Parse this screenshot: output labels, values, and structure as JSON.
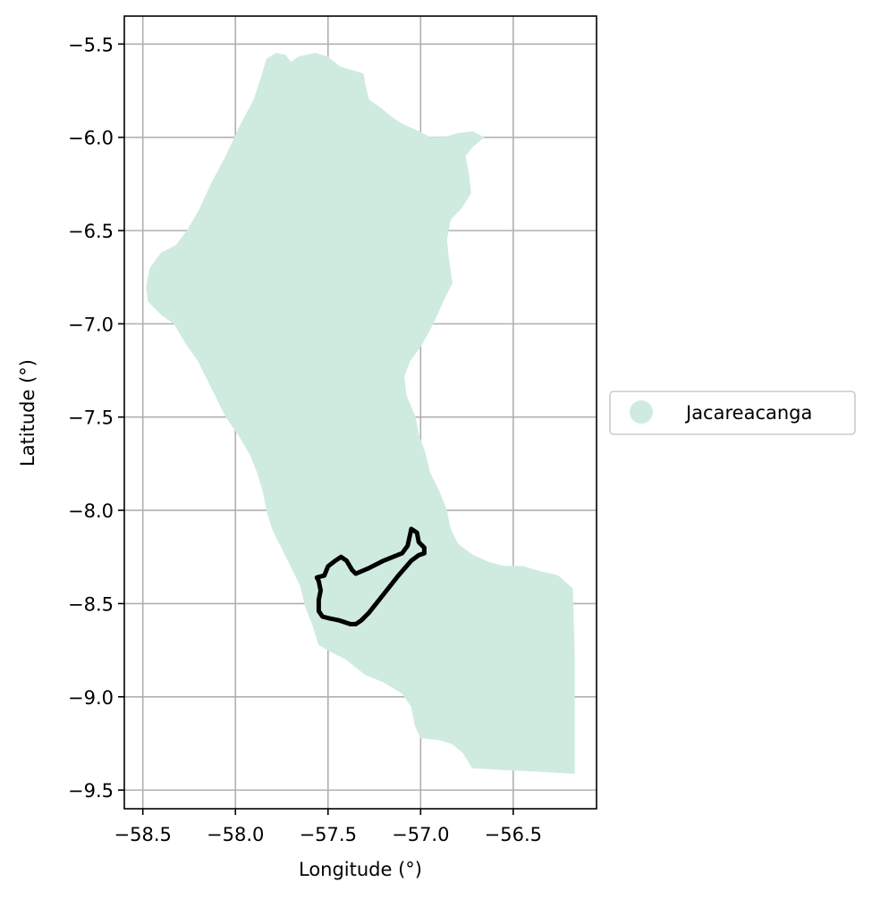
{
  "chart_data": {
    "type": "map",
    "xlabel": "Longitude (°)",
    "ylabel": "Latitude (°)",
    "xlim": [
      -58.6,
      -56.05
    ],
    "ylim": [
      -9.6,
      -5.35
    ],
    "grid": true,
    "x_ticks": [
      -58.5,
      -58.0,
      -57.5,
      -57.0,
      -56.5
    ],
    "x_tick_labels": [
      "−58.5",
      "−58.0",
      "−57.5",
      "−57.0",
      "−56.5"
    ],
    "y_ticks": [
      -5.5,
      -6.0,
      -6.5,
      -7.0,
      -7.5,
      -8.0,
      -8.5,
      -9.0,
      -9.5
    ],
    "y_tick_labels": [
      "−5.5",
      "−6.0",
      "−6.5",
      "−7.0",
      "−7.5",
      "−8.0",
      "−8.5",
      "−9.0",
      "−9.5"
    ],
    "legend": {
      "placement": "center-right outside",
      "entries": [
        {
          "label": "Jacareacanga",
          "color": "#cfebdf",
          "marker": "circle"
        }
      ]
    },
    "regions": [
      {
        "name": "Jacareacanga",
        "fill": "#cfebdf",
        "coordinates": [
          [
            -57.83,
            -5.58
          ],
          [
            -57.78,
            -5.55
          ],
          [
            -57.73,
            -5.56
          ],
          [
            -57.7,
            -5.6
          ],
          [
            -57.66,
            -5.57
          ],
          [
            -57.57,
            -5.55
          ],
          [
            -57.5,
            -5.57
          ],
          [
            -57.44,
            -5.62
          ],
          [
            -57.38,
            -5.64
          ],
          [
            -57.31,
            -5.66
          ],
          [
            -57.3,
            -5.72
          ],
          [
            -57.28,
            -5.8
          ],
          [
            -57.22,
            -5.84
          ],
          [
            -57.16,
            -5.89
          ],
          [
            -57.1,
            -5.93
          ],
          [
            -57.03,
            -5.96
          ],
          [
            -56.95,
            -6.0
          ],
          [
            -56.87,
            -6.0
          ],
          [
            -56.8,
            -5.98
          ],
          [
            -56.72,
            -5.97
          ],
          [
            -56.66,
            -6.0
          ],
          [
            -56.72,
            -6.05
          ],
          [
            -56.76,
            -6.1
          ],
          [
            -56.74,
            -6.2
          ],
          [
            -56.73,
            -6.3
          ],
          [
            -56.78,
            -6.38
          ],
          [
            -56.84,
            -6.44
          ],
          [
            -56.86,
            -6.55
          ],
          [
            -56.85,
            -6.65
          ],
          [
            -56.83,
            -6.78
          ],
          [
            -56.88,
            -6.88
          ],
          [
            -56.92,
            -6.97
          ],
          [
            -56.96,
            -7.05
          ],
          [
            -57.0,
            -7.12
          ],
          [
            -57.06,
            -7.2
          ],
          [
            -57.09,
            -7.28
          ],
          [
            -57.08,
            -7.38
          ],
          [
            -57.03,
            -7.5
          ],
          [
            -57.01,
            -7.6
          ],
          [
            -56.98,
            -7.68
          ],
          [
            -56.95,
            -7.8
          ],
          [
            -56.9,
            -7.9
          ],
          [
            -56.86,
            -8.0
          ],
          [
            -56.84,
            -8.1
          ],
          [
            -56.8,
            -8.18
          ],
          [
            -56.72,
            -8.24
          ],
          [
            -56.63,
            -8.28
          ],
          [
            -56.55,
            -8.3
          ],
          [
            -56.45,
            -8.3
          ],
          [
            -56.35,
            -8.33
          ],
          [
            -56.26,
            -8.35
          ],
          [
            -56.18,
            -8.42
          ],
          [
            -56.17,
            -8.8
          ],
          [
            -56.17,
            -9.2
          ],
          [
            -56.17,
            -9.41
          ],
          [
            -56.35,
            -9.4
          ],
          [
            -56.55,
            -9.39
          ],
          [
            -56.72,
            -9.38
          ],
          [
            -56.77,
            -9.3
          ],
          [
            -56.83,
            -9.25
          ],
          [
            -56.9,
            -9.23
          ],
          [
            -57.0,
            -9.22
          ],
          [
            -57.03,
            -9.15
          ],
          [
            -57.05,
            -9.05
          ],
          [
            -57.1,
            -8.98
          ],
          [
            -57.2,
            -8.92
          ],
          [
            -57.3,
            -8.88
          ],
          [
            -57.4,
            -8.8
          ],
          [
            -57.48,
            -8.76
          ],
          [
            -57.55,
            -8.72
          ],
          [
            -57.58,
            -8.62
          ],
          [
            -57.62,
            -8.52
          ],
          [
            -57.65,
            -8.4
          ],
          [
            -57.7,
            -8.3
          ],
          [
            -57.75,
            -8.2
          ],
          [
            -57.8,
            -8.1
          ],
          [
            -57.83,
            -8.0
          ],
          [
            -57.85,
            -7.9
          ],
          [
            -57.88,
            -7.8
          ],
          [
            -57.92,
            -7.7
          ],
          [
            -57.98,
            -7.6
          ],
          [
            -58.05,
            -7.5
          ],
          [
            -58.1,
            -7.4
          ],
          [
            -58.15,
            -7.3
          ],
          [
            -58.2,
            -7.2
          ],
          [
            -58.27,
            -7.1
          ],
          [
            -58.33,
            -7.0
          ],
          [
            -58.4,
            -6.95
          ],
          [
            -58.47,
            -6.88
          ],
          [
            -58.48,
            -6.8
          ],
          [
            -58.46,
            -6.7
          ],
          [
            -58.4,
            -6.62
          ],
          [
            -58.32,
            -6.58
          ],
          [
            -58.26,
            -6.5
          ],
          [
            -58.2,
            -6.4
          ],
          [
            -58.13,
            -6.25
          ],
          [
            -58.05,
            -6.1
          ],
          [
            -57.98,
            -5.95
          ],
          [
            -57.9,
            -5.8
          ],
          [
            -57.86,
            -5.68
          ]
        ]
      }
    ],
    "outlines": [
      {
        "name": "Jacareacanga outline",
        "stroke": "#000000",
        "coordinates": [
          [
            -57.56,
            -8.36
          ],
          [
            -57.52,
            -8.35
          ],
          [
            -57.5,
            -8.3
          ],
          [
            -57.46,
            -8.27
          ],
          [
            -57.43,
            -8.25
          ],
          [
            -57.4,
            -8.27
          ],
          [
            -57.37,
            -8.32
          ],
          [
            -57.35,
            -8.34
          ],
          [
            -57.28,
            -8.31
          ],
          [
            -57.2,
            -8.27
          ],
          [
            -57.1,
            -8.23
          ],
          [
            -57.07,
            -8.19
          ],
          [
            -57.05,
            -8.1
          ],
          [
            -57.02,
            -8.12
          ],
          [
            -57.01,
            -8.17
          ],
          [
            -56.98,
            -8.2
          ],
          [
            -56.98,
            -8.23
          ],
          [
            -57.01,
            -8.24
          ],
          [
            -57.05,
            -8.27
          ],
          [
            -57.12,
            -8.35
          ],
          [
            -57.2,
            -8.45
          ],
          [
            -57.28,
            -8.55
          ],
          [
            -57.32,
            -8.59
          ],
          [
            -57.35,
            -8.61
          ],
          [
            -57.38,
            -8.61
          ],
          [
            -57.41,
            -8.6
          ],
          [
            -57.44,
            -8.59
          ],
          [
            -57.49,
            -8.58
          ],
          [
            -57.53,
            -8.57
          ],
          [
            -57.55,
            -8.54
          ],
          [
            -57.55,
            -8.48
          ],
          [
            -57.54,
            -8.43
          ],
          [
            -57.55,
            -8.38
          ]
        ]
      }
    ]
  }
}
